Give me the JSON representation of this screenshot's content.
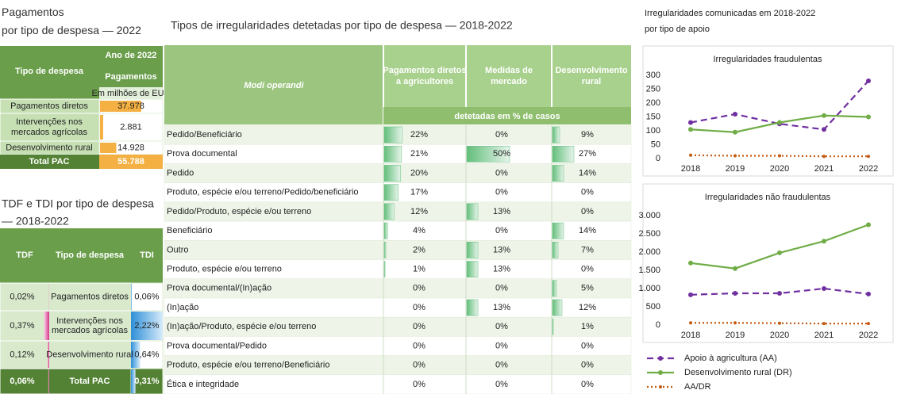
{
  "left_payments": {
    "title": [
      "Pagamentos",
      "por tipo de despesa — 2022"
    ],
    "header": {
      "type": "Tipo de despesa",
      "year": "Ano de 2022",
      "measure": "Pagamentos",
      "unit": "Em milhões de EUR"
    },
    "rows": [
      {
        "label": [
          "Pagamentos diretos"
        ],
        "value": 37978,
        "value_label": "37.978"
      },
      {
        "label": [
          "Intervenções nos",
          "mercados agrícolas"
        ],
        "value": 2881,
        "value_label": "2.881"
      },
      {
        "label": [
          "Desenvolvimento rural"
        ],
        "value": 14928,
        "value_label": "14.928"
      }
    ],
    "total": {
      "label": "Total PAC",
      "value": 55788,
      "value_label": "55.788"
    },
    "bar_color": "#f4b042"
  },
  "rates": {
    "title": [
      "TDF e TDI por tipo de despesa",
      "— 2018-2022"
    ],
    "header": [
      "TDF",
      "Tipo de despesa",
      "TDI"
    ],
    "rows": [
      {
        "label": [
          "Pagamentos diretos"
        ],
        "tdf": 0.02,
        "tdf_label": "0,02%",
        "tdi": 0.06,
        "tdi_label": "0,06%"
      },
      {
        "label": [
          "Intervenções nos",
          "mercados agrícolas"
        ],
        "tdf": 0.37,
        "tdf_label": "0,37%",
        "tdi": 2.22,
        "tdi_label": "2,22%"
      },
      {
        "label": [
          "Desenvolvimento rural"
        ],
        "tdf": 0.12,
        "tdf_label": "0,12%",
        "tdi": 0.64,
        "tdi_label": "0,64%"
      },
      {
        "label": [
          "Total PAC"
        ],
        "tdf": 0.06,
        "tdf_label": "0,06%",
        "tdi": 0.31,
        "tdi_label": "0,31%"
      }
    ]
  },
  "irregularities": {
    "title": "Tipos de irregularidades detetadas por tipo de despesa — 2018-2022",
    "first_header": "Modi operandi",
    "columns": [
      [
        "Pagamentos diretos",
        "a agricultores"
      ],
      [
        "Medidas de",
        "mercado"
      ],
      [
        "Desenvolvimento",
        "rural"
      ]
    ],
    "subheader": "detetadas em % de casos",
    "rows": [
      {
        "label": "Pedido/Beneficiário",
        "values": [
          22,
          0,
          9
        ],
        "value_labels": [
          "22%",
          "0%",
          "9%"
        ]
      },
      {
        "label": "Prova documental",
        "values": [
          21,
          50,
          27
        ],
        "value_labels": [
          "21%",
          "50%",
          "27%"
        ]
      },
      {
        "label": "Pedido",
        "values": [
          20,
          0,
          14
        ],
        "value_labels": [
          "20%",
          "0%",
          "14%"
        ]
      },
      {
        "label": "Produto, espécie e/ou terreno/Pedido/beneficiário",
        "values": [
          17,
          0,
          0
        ],
        "value_labels": [
          "17%",
          "0%",
          "0%"
        ]
      },
      {
        "label": "Pedido/Produto, espécie e/ou terreno",
        "values": [
          12,
          13,
          0
        ],
        "value_labels": [
          "12%",
          "13%",
          "0%"
        ]
      },
      {
        "label": "Beneficiário",
        "values": [
          4,
          0,
          14
        ],
        "value_labels": [
          "4%",
          "0%",
          "14%"
        ]
      },
      {
        "label": "Outro",
        "values": [
          2,
          13,
          7
        ],
        "value_labels": [
          "2%",
          "13%",
          "7%"
        ]
      },
      {
        "label": "Produto, espécie e/ou terreno",
        "values": [
          1,
          13,
          0
        ],
        "value_labels": [
          "1%",
          "13%",
          "0%"
        ]
      },
      {
        "label": "Prova documental/(In)ação",
        "values": [
          0,
          0,
          5
        ],
        "value_labels": [
          "0%",
          "0%",
          "5%"
        ]
      },
      {
        "label": "(In)ação",
        "values": [
          0,
          13,
          12
        ],
        "value_labels": [
          "0%",
          "13%",
          "12%"
        ]
      },
      {
        "label": "(In)ação/Produto, espécie e/ou terreno",
        "values": [
          0,
          0,
          1
        ],
        "value_labels": [
          "0%",
          "0%",
          "1%"
        ]
      },
      {
        "label": "Prova documental/Pedido",
        "values": [
          0,
          0,
          0
        ],
        "value_labels": [
          "0%",
          "0%",
          "0%"
        ]
      },
      {
        "label": "Produto, espécie e/ou terreno/Beneficiário",
        "values": [
          0,
          0,
          0
        ],
        "value_labels": [
          "0%",
          "0%",
          "0%"
        ]
      },
      {
        "label": "Ética e integridade",
        "values": [
          0,
          0,
          0
        ],
        "value_labels": [
          "0%",
          "0%",
          "0%"
        ]
      }
    ]
  },
  "charts_header": [
    "Irregularidades comunicadas em 2018-2022",
    "por tipo de apoio"
  ],
  "chart_data": [
    {
      "type": "line",
      "title": "Irregularidades fraudulentas",
      "categories": [
        "2018",
        "2019",
        "2020",
        "2021",
        "2022"
      ],
      "ylim": [
        0,
        300
      ],
      "yticks": [
        0,
        50,
        100,
        150,
        200,
        250,
        300
      ],
      "grid": false,
      "series": [
        {
          "color": "#7030a0",
          "style": "dashed",
          "values": [
            130,
            160,
            125,
            105,
            280
          ]
        },
        {
          "color": "#70ad47",
          "style": "solid",
          "values": [
            105,
            95,
            130,
            155,
            150
          ]
        },
        {
          "color": "#c55a11",
          "style": "dotted",
          "values": [
            12,
            10,
            10,
            8,
            8
          ]
        }
      ]
    },
    {
      "type": "line",
      "title": "Irregularidades não fraudulentas",
      "categories": [
        "2018",
        "2019",
        "2020",
        "2021",
        "2022"
      ],
      "ylim": [
        0,
        3000
      ],
      "yticks": [
        0,
        500,
        {
          "value": 1000,
          "label": "1.000"
        },
        {
          "value": 1500,
          "label": "1.500"
        },
        {
          "value": 2000,
          "label": "2.000"
        },
        {
          "value": 2500,
          "label": "2.500"
        },
        {
          "value": 3000,
          "label": "3.000"
        }
      ],
      "grid": false,
      "series": [
        {
          "name": "Apoio à agricultura (AA)",
          "color": "#7030a0",
          "style": "dashed",
          "values": [
            830,
            870,
            870,
            1000,
            850
          ]
        },
        {
          "name": "Desenvolvimento rural (DR)",
          "color": "#70ad47",
          "style": "solid",
          "values": [
            1700,
            1550,
            1980,
            2300,
            2750
          ]
        },
        {
          "name": "AA/DR",
          "color": "#c55a11",
          "style": "dotted",
          "values": [
            60,
            60,
            50,
            40,
            40
          ]
        }
      ]
    }
  ]
}
